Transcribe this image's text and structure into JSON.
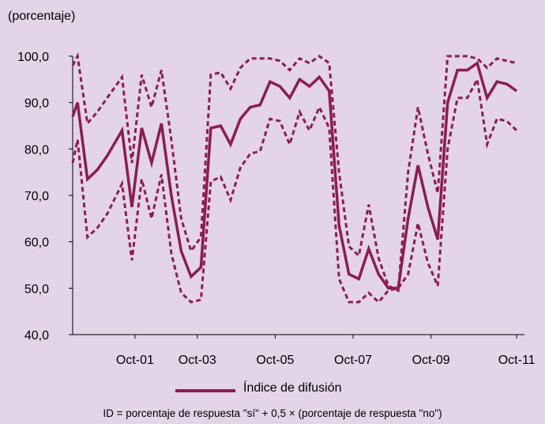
{
  "chart_data": {
    "type": "line",
    "ylabel": "(porcentaje)",
    "ylim": [
      40,
      100
    ],
    "yticks": [
      "40,0",
      "50,0",
      "60,0",
      "70,0",
      "80,0",
      "90,0",
      "100,0"
    ],
    "xlim": [
      0,
      58
    ],
    "xticks": [
      {
        "label": "Oct-01",
        "at": 8
      },
      {
        "label": "Oct-03",
        "at": 16
      },
      {
        "label": "Oct-05",
        "at": 26
      },
      {
        "label": "Oct-07",
        "at": 36
      },
      {
        "label": "Oct-09",
        "at": 46
      },
      {
        "label": "Oct-11",
        "at": 57
      }
    ],
    "series": [
      {
        "name": "Índice de difusión",
        "style": "solid",
        "color": "#8b1d4f",
        "values": [
          87.0,
          90.0,
          73.5,
          75.5,
          78.5,
          84.0,
          67.5,
          84.5,
          77.0,
          85.5,
          70.0,
          58.0,
          52.5,
          54.5,
          84.5,
          85.0,
          81.0,
          86.5,
          89.0,
          89.5,
          94.5,
          93.5,
          91.0,
          95.0,
          93.5,
          95.5,
          92.5,
          63.5,
          53.0,
          52.0,
          58.5,
          53.0,
          50.0,
          50.0,
          65.0,
          76.5,
          67.5,
          60.5,
          90.0,
          97.0,
          97.0,
          98.5,
          91.0,
          94.5,
          94.0,
          92.5
        ],
        "x": [
          0,
          0.5,
          1.5,
          2.5,
          3.5,
          5,
          6,
          7,
          8,
          9,
          10,
          11,
          12,
          13,
          14,
          15,
          16,
          17,
          18,
          19,
          20,
          21,
          22,
          23,
          24,
          25,
          26,
          27,
          28,
          29,
          30,
          31,
          32,
          33,
          34,
          35,
          36,
          37,
          38,
          39,
          40,
          41,
          42,
          43,
          44,
          45
        ]
      },
      {
        "name": "",
        "style": "dashed",
        "color": "#8b1d4f",
        "values": [
          98.0,
          100.0,
          85.5,
          88.0,
          91.0,
          95.5,
          77.0,
          96.0,
          89.0,
          97.0,
          82.0,
          65.0,
          58.0,
          61.0,
          96.0,
          96.5,
          93.0,
          97.5,
          99.5,
          99.5,
          99.5,
          99.0,
          97.0,
          99.5,
          98.5,
          100.0,
          98.5,
          75.0,
          59.0,
          57.0,
          68.0,
          56.5,
          50.5,
          49.5,
          75.0,
          89.0,
          79.0,
          70.5,
          100.0,
          100.0,
          100.0,
          99.5,
          97.5,
          99.5,
          99.0,
          98.5
        ],
        "x": [
          0,
          0.5,
          1.5,
          2.5,
          3.5,
          5,
          6,
          7,
          8,
          9,
          10,
          11,
          12,
          13,
          14,
          15,
          16,
          17,
          18,
          19,
          20,
          21,
          22,
          23,
          24,
          25,
          26,
          27,
          28,
          29,
          30,
          31,
          32,
          33,
          34,
          35,
          36,
          37,
          38,
          39,
          40,
          41,
          42,
          43,
          44,
          45
        ]
      },
      {
        "name": "",
        "style": "dashed",
        "color": "#8b1d4f",
        "values": [
          77.0,
          82.0,
          61.0,
          63.0,
          66.0,
          72.5,
          56.0,
          73.5,
          65.0,
          74.5,
          57.5,
          49.0,
          47.0,
          47.5,
          73.0,
          74.0,
          69.0,
          76.0,
          79.0,
          79.5,
          86.5,
          86.0,
          81.0,
          88.0,
          84.0,
          89.0,
          84.5,
          52.0,
          47.0,
          47.0,
          49.0,
          47.0,
          49.5,
          50.0,
          53.0,
          64.0,
          55.5,
          50.5,
          80.0,
          91.0,
          91.0,
          95.0,
          81.0,
          86.5,
          86.0,
          84.0
        ],
        "x": [
          0,
          0.5,
          1.5,
          2.5,
          3.5,
          5,
          6,
          7,
          8,
          9,
          10,
          11,
          12,
          13,
          14,
          15,
          16,
          17,
          18,
          19,
          20,
          21,
          22,
          23,
          24,
          25,
          26,
          27,
          28,
          29,
          30,
          31,
          32,
          33,
          34,
          35,
          36,
          37,
          38,
          39,
          40,
          41,
          42,
          43,
          44,
          45
        ]
      }
    ],
    "legend": [
      {
        "label": "Índice de difusión",
        "style": "solid",
        "color": "#8b1d4f"
      }
    ],
    "footnote": "ID = porcentaje de respuesta \"sí\" + 0,5 × (porcentaje de respuesta \"no\")",
    "grid": false,
    "legend_position": "bottom"
  }
}
